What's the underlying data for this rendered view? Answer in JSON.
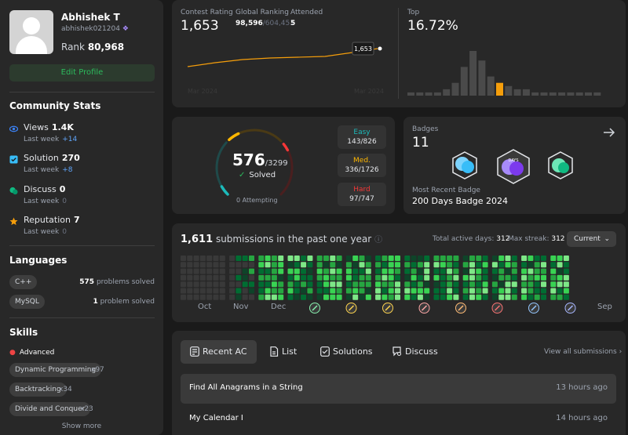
{
  "profile": {
    "name": "Abhishek T",
    "handle": "abhishek021204",
    "rank_label": "Rank",
    "rank_value": "80,968",
    "edit_label": "Edit Profile"
  },
  "community": {
    "title": "Community Stats",
    "items": [
      {
        "label": "Views",
        "value": "1.4K",
        "sub": "Last week",
        "delta": "+14",
        "icon": "eye-icon",
        "color": "#3b82f6"
      },
      {
        "label": "Solution",
        "value": "270",
        "sub": "Last week",
        "delta": "+8",
        "icon": "checkbox-icon",
        "color": "#38bdf8"
      },
      {
        "label": "Discuss",
        "value": "0",
        "sub": "Last week",
        "delta": "0",
        "icon": "discuss-icon",
        "color": "#10b981"
      },
      {
        "label": "Reputation",
        "value": "7",
        "sub": "Last week",
        "delta": "0",
        "icon": "star-icon",
        "color": "#f59e0b"
      }
    ]
  },
  "languages": {
    "title": "Languages",
    "items": [
      {
        "name": "C++",
        "count": "575",
        "suffix": "problems solved"
      },
      {
        "name": "MySQL",
        "count": "1",
        "suffix": "problem solved"
      }
    ]
  },
  "skills": {
    "title": "Skills",
    "level": "Advanced",
    "items": [
      {
        "name": "Dynamic Programming",
        "count": "x97"
      },
      {
        "name": "Backtracking",
        "count": "x34"
      },
      {
        "name": "Divide and Conquer",
        "count": "x23"
      }
    ],
    "show_more": "Show more"
  },
  "contest": {
    "rating_label": "Contest Rating",
    "rating_value": "1,653",
    "global_label": "Global Ranking",
    "global_value": "98,596",
    "global_total": "/604,451",
    "attended_label": "Attended",
    "attended_value": "5",
    "tooltip": "1,653",
    "x_start": "Mar 2024",
    "x_end": "Mar 2024",
    "top_label": "Top",
    "top_value": "16.72%",
    "histogram": [
      1,
      1,
      1,
      1,
      2,
      4,
      9,
      14,
      11,
      6,
      4,
      3,
      2,
      2,
      1,
      1,
      1,
      1,
      1,
      1,
      1,
      1
    ],
    "highlight_index": 10,
    "accent": "#f59e0b"
  },
  "solved": {
    "solved": "576",
    "total": "/3299",
    "solved_label": "Solved",
    "attempting": "0 Attempting",
    "easy": {
      "label": "Easy",
      "value": "143/826",
      "color": "#1cbaba"
    },
    "medium": {
      "label": "Med.",
      "value": "336/1726",
      "color": "#ffb700"
    },
    "hard": {
      "label": "Hard",
      "value": "97/747",
      "color": "#f63737"
    },
    "fractions": {
      "easy": 0.173,
      "medium": 0.195,
      "hard": 0.13
    }
  },
  "badges": {
    "title": "Badges",
    "count": "11",
    "recent_label": "Most Recent Badge",
    "recent_name": "200 Days Badge 2024"
  },
  "submissions": {
    "count": "1,611",
    "label": "submissions in the past one year",
    "active_label": "Total active days:",
    "active_value": "312",
    "streak_label": "Max streak:",
    "streak_value": "312",
    "current_label": "Current",
    "months": [
      "Oct",
      "Nov",
      "Dec",
      "Sep"
    ],
    "palette": [
      "#393939",
      "#0e4429",
      "#006d32",
      "#26a641",
      "#39d353",
      "#7ee787"
    ]
  },
  "tabs": {
    "items": [
      {
        "label": "Recent AC",
        "icon": "recent-ac-icon"
      },
      {
        "label": "List",
        "icon": "list-icon"
      },
      {
        "label": "Solutions",
        "icon": "solutions-icon"
      },
      {
        "label": "Discuss",
        "icon": "discuss-search-icon"
      }
    ],
    "view_all": "View all submissions"
  },
  "recent": [
    {
      "name": "Find All Anagrams in a String",
      "time": "13 hours ago"
    },
    {
      "name": "My Calendar I",
      "time": "14 hours ago"
    }
  ]
}
